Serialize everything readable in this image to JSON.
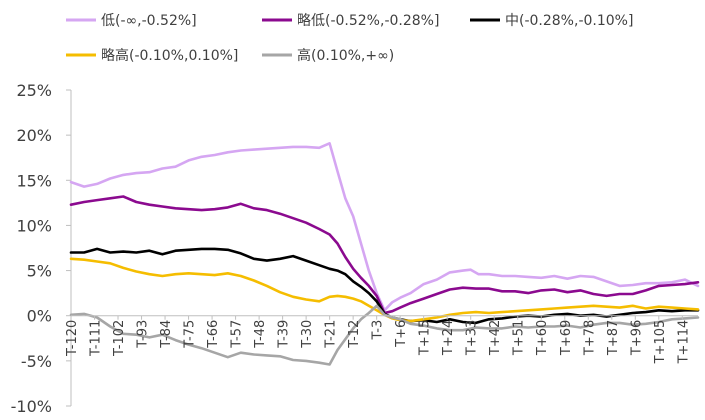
{
  "chart_data": {
    "type": "line",
    "title": "",
    "xlabel": "",
    "ylabel": "",
    "ylim": [
      -10,
      25
    ],
    "y_ticks": [
      {
        "value": 25,
        "label": "25%"
      },
      {
        "value": 20,
        "label": "20%"
      },
      {
        "value": 15,
        "label": "15%"
      },
      {
        "value": 10,
        "label": "10%"
      },
      {
        "value": 5,
        "label": "5%"
      },
      {
        "value": 0,
        "label": "0%"
      },
      {
        "value": -5,
        "label": "-5%"
      },
      {
        "value": -10,
        "label": "-10%"
      }
    ],
    "x_range": [
      -120,
      120
    ],
    "x_ticks": [
      {
        "value": -120,
        "label": "T-120"
      },
      {
        "value": -111,
        "label": "T-111"
      },
      {
        "value": -102,
        "label": "T-102"
      },
      {
        "value": -93,
        "label": "T-93"
      },
      {
        "value": -84,
        "label": "T-84"
      },
      {
        "value": -75,
        "label": "T-75"
      },
      {
        "value": -66,
        "label": "T-66"
      },
      {
        "value": -57,
        "label": "T-57"
      },
      {
        "value": -48,
        "label": "T-48"
      },
      {
        "value": -39,
        "label": "T-39"
      },
      {
        "value": -30,
        "label": "T-30"
      },
      {
        "value": -21,
        "label": "T-21"
      },
      {
        "value": -12,
        "label": "T-12"
      },
      {
        "value": -3,
        "label": "T-3"
      },
      {
        "value": 6,
        "label": "T+6"
      },
      {
        "value": 15,
        "label": "T+15"
      },
      {
        "value": 24,
        "label": "T+24"
      },
      {
        "value": 33,
        "label": "T+33"
      },
      {
        "value": 42,
        "label": "T+42"
      },
      {
        "value": 51,
        "label": "T+51"
      },
      {
        "value": 60,
        "label": "T+60"
      },
      {
        "value": 69,
        "label": "T+69"
      },
      {
        "value": 78,
        "label": "T+78"
      },
      {
        "value": 87,
        "label": "T+87"
      },
      {
        "value": 96,
        "label": "T+96"
      },
      {
        "value": 105,
        "label": "T+105"
      },
      {
        "value": 114,
        "label": "T+114"
      }
    ],
    "series": [
      {
        "name": "低(-∞,-0.52%]",
        "color": "#d5a6f2",
        "x": [
          -120,
          -115,
          -110,
          -105,
          -100,
          -95,
          -90,
          -85,
          -80,
          -75,
          -70,
          -65,
          -60,
          -55,
          -50,
          -45,
          -40,
          -35,
          -30,
          -25,
          -21,
          -18,
          -15,
          -12,
          -9,
          -6,
          -3,
          0,
          3,
          6,
          10,
          15,
          20,
          25,
          30,
          33,
          36,
          40,
          45,
          50,
          55,
          60,
          65,
          70,
          75,
          80,
          85,
          90,
          95,
          100,
          105,
          110,
          115,
          120
        ],
        "values": [
          14.8,
          14.3,
          14.6,
          15.2,
          15.6,
          15.8,
          15.9,
          16.3,
          16.5,
          17.2,
          17.6,
          17.8,
          18.1,
          18.3,
          18.4,
          18.5,
          18.6,
          18.7,
          18.7,
          18.6,
          19.1,
          16.0,
          13.0,
          11.0,
          8.0,
          5.0,
          2.5,
          0.6,
          1.5,
          2.0,
          2.5,
          3.5,
          4.0,
          4.8,
          5.0,
          5.1,
          4.6,
          4.6,
          4.4,
          4.4,
          4.3,
          4.2,
          4.4,
          4.1,
          4.4,
          4.3,
          3.8,
          3.3,
          3.4,
          3.6,
          3.6,
          3.7,
          4.0,
          3.3
        ]
      },
      {
        "name": "略低(-0.52%,-0.28%]",
        "color": "#8b0a8f",
        "x": [
          -120,
          -115,
          -110,
          -105,
          -100,
          -95,
          -90,
          -85,
          -80,
          -75,
          -70,
          -65,
          -60,
          -55,
          -50,
          -45,
          -40,
          -35,
          -30,
          -25,
          -21,
          -18,
          -15,
          -12,
          -9,
          -6,
          -3,
          0,
          3,
          6,
          10,
          15,
          20,
          25,
          30,
          35,
          40,
          45,
          50,
          55,
          60,
          65,
          70,
          75,
          80,
          85,
          90,
          95,
          100,
          105,
          110,
          115,
          120
        ],
        "values": [
          12.3,
          12.6,
          12.8,
          13.0,
          13.2,
          12.6,
          12.3,
          12.1,
          11.9,
          11.8,
          11.7,
          11.8,
          12.0,
          12.4,
          11.9,
          11.7,
          11.3,
          10.8,
          10.3,
          9.6,
          9.0,
          8.0,
          6.5,
          5.2,
          4.2,
          3.3,
          2.2,
          0.3,
          0.5,
          0.9,
          1.4,
          1.9,
          2.4,
          2.9,
          3.1,
          3.0,
          3.0,
          2.7,
          2.7,
          2.5,
          2.8,
          2.9,
          2.6,
          2.8,
          2.4,
          2.2,
          2.4,
          2.4,
          2.8,
          3.3,
          3.4,
          3.5,
          3.7
        ]
      },
      {
        "name": "中(-0.28%,-0.10%]",
        "color": "#000000",
        "x": [
          -120,
          -115,
          -110,
          -105,
          -100,
          -95,
          -90,
          -85,
          -80,
          -75,
          -70,
          -65,
          -60,
          -55,
          -50,
          -45,
          -40,
          -35,
          -30,
          -25,
          -21,
          -18,
          -15,
          -12,
          -9,
          -6,
          -3,
          0,
          3,
          6,
          10,
          15,
          20,
          25,
          30,
          35,
          40,
          45,
          50,
          55,
          60,
          65,
          70,
          75,
          80,
          85,
          90,
          95,
          100,
          105,
          110,
          115,
          120
        ],
        "values": [
          7.0,
          7.0,
          7.4,
          7.0,
          7.1,
          7.0,
          7.2,
          6.8,
          7.2,
          7.3,
          7.4,
          7.4,
          7.3,
          6.9,
          6.3,
          6.1,
          6.3,
          6.6,
          6.1,
          5.6,
          5.2,
          5.0,
          4.6,
          3.8,
          3.2,
          2.5,
          1.6,
          0.2,
          -0.2,
          -0.4,
          -0.6,
          -0.5,
          -0.7,
          -0.4,
          -0.7,
          -0.8,
          -0.4,
          -0.3,
          -0.1,
          0.0,
          -0.1,
          0.1,
          0.2,
          0.0,
          0.1,
          -0.1,
          0.1,
          0.3,
          0.4,
          0.6,
          0.5,
          0.6,
          0.6
        ]
      },
      {
        "name": "略高(-0.10%,0.10%]",
        "color": "#f5bd00",
        "x": [
          -120,
          -115,
          -110,
          -105,
          -100,
          -95,
          -90,
          -85,
          -80,
          -75,
          -70,
          -65,
          -60,
          -55,
          -50,
          -45,
          -40,
          -35,
          -30,
          -25,
          -21,
          -18,
          -15,
          -12,
          -9,
          -6,
          -3,
          0,
          3,
          6,
          10,
          15,
          20,
          25,
          30,
          35,
          40,
          45,
          50,
          55,
          60,
          65,
          70,
          75,
          80,
          85,
          90,
          95,
          100,
          105,
          110,
          115,
          120
        ],
        "values": [
          6.3,
          6.2,
          6.0,
          5.8,
          5.3,
          4.9,
          4.6,
          4.4,
          4.6,
          4.7,
          4.6,
          4.5,
          4.7,
          4.4,
          3.9,
          3.3,
          2.6,
          2.1,
          1.8,
          1.6,
          2.1,
          2.2,
          2.1,
          1.9,
          1.6,
          1.1,
          0.6,
          0.1,
          -0.3,
          -0.5,
          -0.6,
          -0.4,
          -0.2,
          0.1,
          0.3,
          0.4,
          0.3,
          0.4,
          0.5,
          0.6,
          0.7,
          0.8,
          0.9,
          1.0,
          1.1,
          1.0,
          0.9,
          1.1,
          0.8,
          1.0,
          0.9,
          0.8,
          0.7
        ]
      },
      {
        "name": "高(0.10%,+∞)",
        "color": "#a6a6a6",
        "x": [
          -120,
          -115,
          -110,
          -105,
          -100,
          -95,
          -90,
          -85,
          -80,
          -75,
          -70,
          -65,
          -60,
          -55,
          -50,
          -45,
          -40,
          -35,
          -30,
          -25,
          -21,
          -18,
          -15,
          -12,
          -9,
          -6,
          -3,
          0,
          3,
          6,
          10,
          15,
          20,
          25,
          30,
          35,
          40,
          45,
          50,
          55,
          60,
          65,
          70,
          75,
          80,
          85,
          90,
          95,
          100,
          105,
          110,
          115,
          120
        ],
        "values": [
          0.1,
          0.2,
          -0.2,
          -1.2,
          -2.0,
          -2.1,
          -2.4,
          -2.1,
          -2.7,
          -3.2,
          -3.6,
          -4.1,
          -4.6,
          -4.1,
          -4.3,
          -4.4,
          -4.5,
          -4.9,
          -5.0,
          -5.2,
          -5.4,
          -3.8,
          -2.6,
          -1.4,
          -0.4,
          0.3,
          1.1,
          0.1,
          -0.2,
          -0.4,
          -0.9,
          -1.1,
          -1.4,
          -1.6,
          -1.6,
          -1.3,
          -1.4,
          -1.4,
          -1.2,
          -1.3,
          -1.2,
          -1.2,
          -1.1,
          -1.3,
          -1.0,
          -0.8,
          -0.8,
          -1.0,
          -0.9,
          -0.7,
          -0.4,
          -0.3,
          -0.2
        ]
      }
    ]
  }
}
